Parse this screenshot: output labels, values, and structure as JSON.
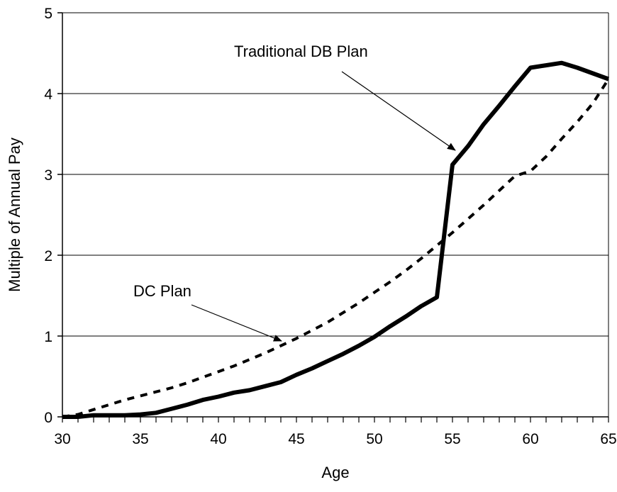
{
  "chart_data": {
    "type": "line",
    "title": "",
    "xlabel": "Age",
    "ylabel": "Multiple of Annual Pay",
    "xlim": [
      30,
      65
    ],
    "ylim": [
      0,
      5
    ],
    "x_ticks": [
      30,
      35,
      40,
      45,
      50,
      55,
      60,
      65
    ],
    "y_ticks": [
      0,
      1,
      2,
      3,
      4,
      5
    ],
    "grid": "horizontal",
    "legend": "none",
    "series": [
      {
        "key": "db",
        "style": "solid",
        "color": "#000000",
        "x": [
          30,
          31,
          32,
          33,
          34,
          35,
          36,
          37,
          38,
          39,
          40,
          41,
          42,
          43,
          44,
          45,
          46,
          47,
          48,
          49,
          50,
          51,
          52,
          53,
          54,
          55,
          56,
          57,
          58,
          59,
          60,
          61,
          62,
          63,
          64,
          65
        ],
        "y": [
          0.0,
          0.0,
          0.02,
          0.02,
          0.02,
          0.03,
          0.05,
          0.1,
          0.15,
          0.21,
          0.25,
          0.3,
          0.33,
          0.38,
          0.43,
          0.52,
          0.6,
          0.69,
          0.78,
          0.88,
          0.99,
          1.12,
          1.24,
          1.37,
          1.48,
          3.12,
          3.35,
          3.62,
          3.85,
          4.09,
          4.32,
          4.35,
          4.38,
          4.32,
          4.25,
          4.18
        ]
      },
      {
        "key": "dc",
        "style": "dashed",
        "color": "#000000",
        "x": [
          30,
          31,
          32,
          33,
          34,
          35,
          36,
          37,
          38,
          39,
          40,
          41,
          42,
          43,
          44,
          45,
          46,
          47,
          48,
          49,
          50,
          51,
          52,
          53,
          54,
          55,
          56,
          57,
          58,
          59,
          60,
          61,
          62,
          63,
          64,
          65
        ],
        "y": [
          0.0,
          0.03,
          0.09,
          0.15,
          0.21,
          0.26,
          0.31,
          0.36,
          0.42,
          0.49,
          0.56,
          0.63,
          0.71,
          0.79,
          0.88,
          0.97,
          1.07,
          1.17,
          1.29,
          1.41,
          1.54,
          1.67,
          1.81,
          1.96,
          2.12,
          2.28,
          2.45,
          2.62,
          2.8,
          2.98,
          3.04,
          3.22,
          3.44,
          3.65,
          3.88,
          4.18
        ]
      }
    ],
    "annotations": [
      {
        "text": "Traditional DB Plan",
        "target_series": "db",
        "target_x": 55,
        "target_y": 3.12
      },
      {
        "text": "DC Plan",
        "target_series": "dc",
        "target_x": 45,
        "target_y": 0.97
      }
    ]
  }
}
